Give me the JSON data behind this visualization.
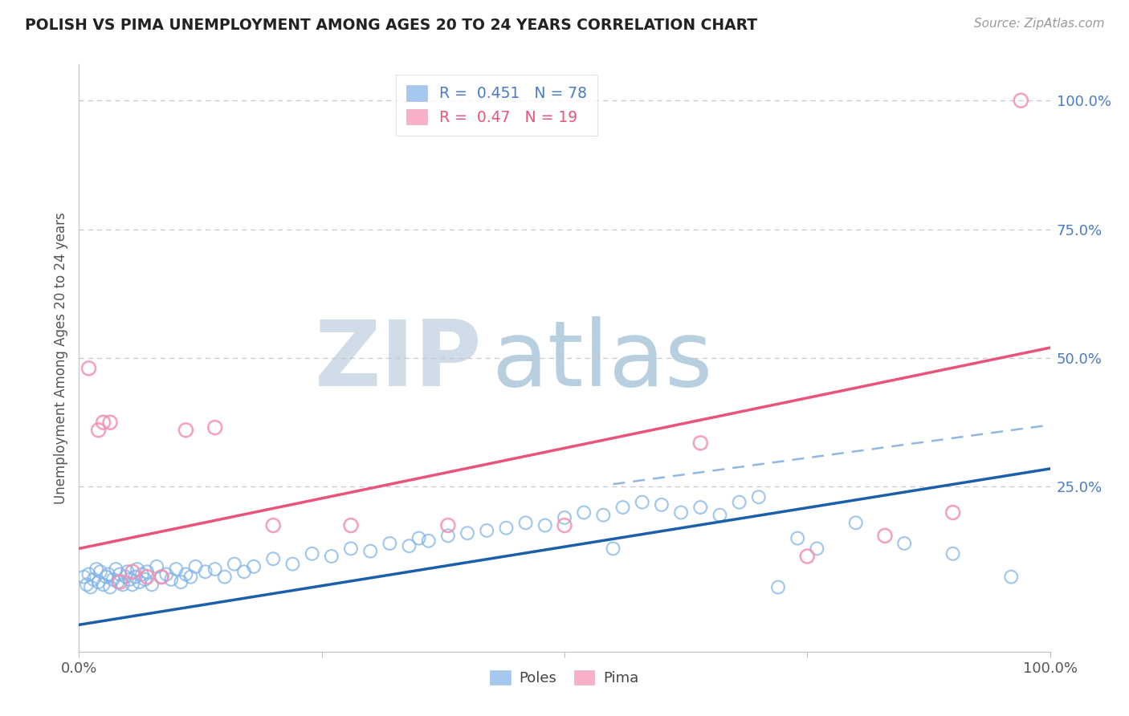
{
  "title": "POLISH VS PIMA UNEMPLOYMENT AMONG AGES 20 TO 24 YEARS CORRELATION CHART",
  "source": "Source: ZipAtlas.com",
  "ylabel": "Unemployment Among Ages 20 to 24 years",
  "xlim": [
    0.0,
    1.0
  ],
  "ylim": [
    -0.07,
    1.07
  ],
  "poles_R": 0.451,
  "poles_N": 78,
  "pima_R": 0.47,
  "pima_N": 19,
  "poles_color": "#7fb3e8",
  "pima_color": "#f48fb1",
  "poles_line_color": "#1a5fa8",
  "pima_line_color": "#e8547a",
  "dashed_line_color": "#90b8e0",
  "watermark_zip_color": "#d0dce8",
  "watermark_atlas_color": "#b8cfe0",
  "background_color": "#ffffff",
  "grid_color": "#c8c8d0",
  "right_ytick_values": [
    0.25,
    0.5,
    0.75,
    1.0
  ],
  "right_ytick_labels": [
    "25.0%",
    "50.0%",
    "75.0%",
    "100.0%"
  ],
  "poles_line_x0": 0.0,
  "poles_line_y0": -0.018,
  "poles_line_x1": 1.0,
  "poles_line_y1": 0.285,
  "pima_line_x0": 0.0,
  "pima_line_y0": 0.13,
  "pima_line_x1": 1.0,
  "pima_line_y1": 0.52,
  "dashed_line_x0": 0.55,
  "dashed_line_y0": 0.255,
  "dashed_line_x1": 1.0,
  "dashed_line_y1": 0.37,
  "poles_x": [
    0.005,
    0.008,
    0.01,
    0.012,
    0.015,
    0.018,
    0.02,
    0.022,
    0.025,
    0.028,
    0.03,
    0.032,
    0.035,
    0.038,
    0.04,
    0.042,
    0.045,
    0.048,
    0.05,
    0.052,
    0.055,
    0.058,
    0.06,
    0.062,
    0.065,
    0.068,
    0.07,
    0.075,
    0.08,
    0.085,
    0.09,
    0.095,
    0.1,
    0.105,
    0.11,
    0.115,
    0.12,
    0.13,
    0.14,
    0.15,
    0.16,
    0.17,
    0.18,
    0.2,
    0.22,
    0.24,
    0.26,
    0.28,
    0.3,
    0.32,
    0.34,
    0.35,
    0.36,
    0.38,
    0.4,
    0.42,
    0.44,
    0.46,
    0.48,
    0.5,
    0.52,
    0.54,
    0.55,
    0.56,
    0.58,
    0.6,
    0.62,
    0.64,
    0.66,
    0.68,
    0.7,
    0.72,
    0.74,
    0.76,
    0.8,
    0.85,
    0.9,
    0.96
  ],
  "poles_y": [
    0.075,
    0.06,
    0.08,
    0.055,
    0.07,
    0.09,
    0.065,
    0.085,
    0.06,
    0.075,
    0.08,
    0.055,
    0.07,
    0.09,
    0.065,
    0.08,
    0.06,
    0.075,
    0.085,
    0.07,
    0.06,
    0.075,
    0.09,
    0.065,
    0.08,
    0.07,
    0.085,
    0.06,
    0.095,
    0.075,
    0.08,
    0.07,
    0.09,
    0.065,
    0.08,
    0.075,
    0.095,
    0.085,
    0.09,
    0.075,
    0.1,
    0.085,
    0.095,
    0.11,
    0.1,
    0.12,
    0.115,
    0.13,
    0.125,
    0.14,
    0.135,
    0.15,
    0.145,
    0.155,
    0.16,
    0.165,
    0.17,
    0.18,
    0.175,
    0.19,
    0.2,
    0.195,
    0.13,
    0.21,
    0.22,
    0.215,
    0.2,
    0.21,
    0.195,
    0.22,
    0.23,
    0.055,
    0.15,
    0.13,
    0.18,
    0.14,
    0.12,
    0.075
  ],
  "pima_x": [
    0.01,
    0.02,
    0.025,
    0.032,
    0.042,
    0.055,
    0.07,
    0.085,
    0.11,
    0.14,
    0.2,
    0.28,
    0.38,
    0.5,
    0.64,
    0.75,
    0.83,
    0.9,
    0.97
  ],
  "pima_y": [
    0.48,
    0.36,
    0.375,
    0.375,
    0.065,
    0.085,
    0.075,
    0.075,
    0.36,
    0.365,
    0.175,
    0.175,
    0.175,
    0.175,
    0.335,
    0.115,
    0.155,
    0.2,
    1.0
  ]
}
